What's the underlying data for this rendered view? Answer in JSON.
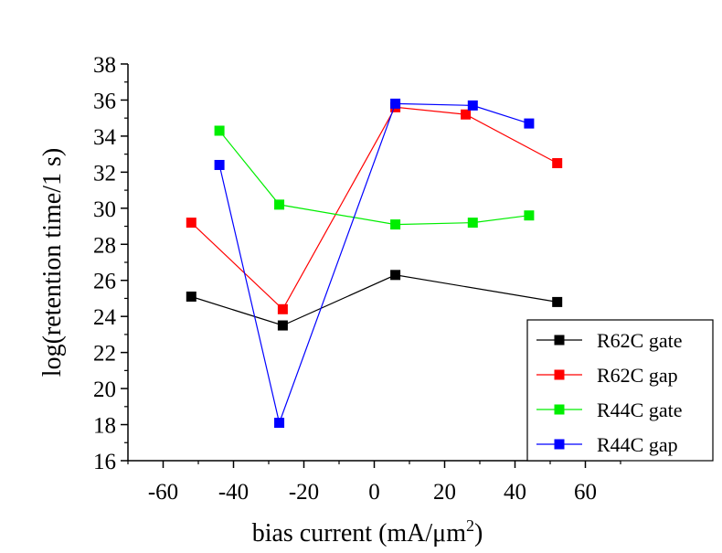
{
  "chart_data": {
    "type": "line",
    "xlabel": "bias current (mA/μm",
    "xlabel_sup": "2",
    "xlabel_end": ")",
    "ylabel": "log(retention time/1 s)",
    "xlim": [
      -70,
      70
    ],
    "ylim": [
      16,
      38
    ],
    "xticks": [
      -60,
      -40,
      -20,
      0,
      20,
      40,
      60
    ],
    "xtick_labels": [
      "-60",
      "-40",
      "-20",
      "0",
      "20",
      "40",
      "60"
    ],
    "yticks": [
      16,
      18,
      20,
      22,
      24,
      26,
      28,
      30,
      32,
      34,
      36,
      38
    ],
    "ytick_labels": [
      "16",
      "18",
      "20",
      "22",
      "24",
      "26",
      "28",
      "30",
      "32",
      "34",
      "36",
      "38"
    ],
    "legend_position": "bottom-right",
    "series": [
      {
        "name": "R62C gate",
        "color": "#000000",
        "marker": "square",
        "x": [
          -52,
          -26,
          6,
          52
        ],
        "y": [
          25.1,
          23.5,
          26.3,
          24.8
        ]
      },
      {
        "name": "R62C gap",
        "color": "#ff0000",
        "marker": "square",
        "x": [
          -52,
          -26,
          6,
          26,
          52
        ],
        "y": [
          29.2,
          24.4,
          35.6,
          35.2,
          32.5
        ]
      },
      {
        "name": "R44C gate",
        "color": "#00ee00",
        "marker": "square",
        "x": [
          -44,
          -27,
          6,
          28,
          44
        ],
        "y": [
          34.3,
          30.2,
          29.1,
          29.2,
          29.6
        ]
      },
      {
        "name": "R44C gap",
        "color": "#0000ff",
        "marker": "square",
        "x": [
          -44,
          -27,
          6,
          28,
          44
        ],
        "y": [
          32.4,
          18.1,
          35.8,
          35.7,
          34.7
        ]
      }
    ]
  }
}
